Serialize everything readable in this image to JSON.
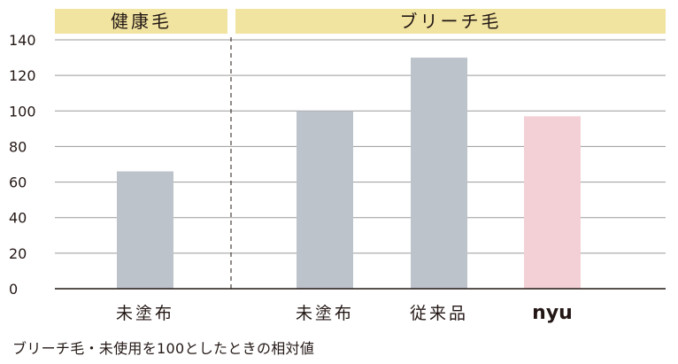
{
  "chart_data": {
    "type": "bar",
    "categories": [
      "未塗布",
      "未塗布",
      "従来品",
      "nyu"
    ],
    "values": [
      66,
      100,
      130,
      97
    ],
    "bar_colors": [
      "#bdc3cb",
      "#bdc3cb",
      "#bdc3cb",
      "#f2d0d6"
    ],
    "groups": [
      {
        "label": "健康毛",
        "categories": [
          "未塗布"
        ]
      },
      {
        "label": "ブリーチ毛",
        "categories": [
          "未塗布",
          "従来品",
          "nyu"
        ]
      }
    ],
    "yticks": [
      0,
      20,
      40,
      60,
      80,
      100,
      120,
      140
    ],
    "ylim": [
      0,
      140
    ],
    "grid": true,
    "group_band_color": "#f1e4a0",
    "note": "ブリーチ毛・未使用を100としたときの相対値"
  }
}
